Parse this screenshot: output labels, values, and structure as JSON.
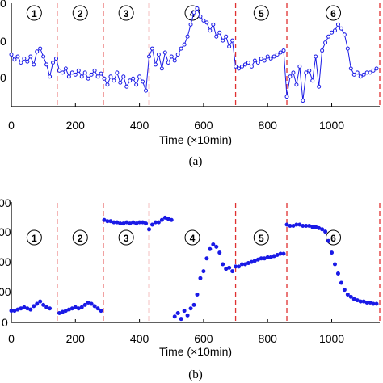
{
  "figure": {
    "caption_a": "(a)",
    "caption_b": "(b)"
  },
  "chart_data": [
    {
      "type": "line",
      "panel": "a",
      "xlabel": "Time (×10min)",
      "ylabel": "",
      "xlim": [
        0,
        1150
      ],
      "ylim": [
        0,
        1.0
      ],
      "xticks": [
        "0",
        "200",
        "400",
        "600",
        "800",
        "1000"
      ],
      "yticks_visible": [
        "0",
        "0",
        "0"
      ],
      "grid": false,
      "marker": "circle",
      "color": "#1a1ae6",
      "boundary_color": "#e03030",
      "boundaries": [
        143,
        287,
        430,
        700,
        860,
        1150
      ],
      "segments": [
        "①",
        "②",
        "③",
        "④",
        "⑤",
        "⑥"
      ],
      "series": [
        {
          "x": [
            0,
            10,
            20,
            30,
            40,
            50,
            60,
            70,
            80,
            90,
            100,
            110,
            120,
            130,
            140,
            150,
            160,
            170,
            180,
            190,
            200,
            210,
            220,
            230,
            240,
            250,
            260,
            270,
            280,
            290,
            300,
            310,
            320,
            330,
            340,
            350,
            360,
            370,
            380,
            390,
            400,
            410,
            420,
            430,
            440,
            450,
            460,
            470,
            480,
            490,
            500,
            510,
            520,
            530,
            540,
            550,
            560,
            570,
            580,
            590,
            600,
            610,
            620,
            630,
            640,
            650,
            660,
            670,
            680,
            690,
            700,
            710,
            720,
            730,
            740,
            750,
            760,
            770,
            780,
            790,
            800,
            810,
            820,
            830,
            840,
            850,
            860,
            870,
            880,
            890,
            900,
            910,
            920,
            930,
            940,
            950,
            960,
            970,
            980,
            990,
            1000,
            1010,
            1020,
            1030,
            1040,
            1050,
            1060,
            1070,
            1080,
            1090,
            1100,
            1110,
            1120,
            1130,
            1140
          ],
          "y": [
            0.52,
            0.47,
            0.5,
            0.44,
            0.48,
            0.45,
            0.5,
            0.42,
            0.55,
            0.58,
            0.5,
            0.42,
            0.3,
            0.44,
            0.48,
            0.36,
            0.34,
            0.38,
            0.3,
            0.34,
            0.32,
            0.36,
            0.3,
            0.34,
            0.28,
            0.32,
            0.36,
            0.3,
            0.33,
            0.28,
            0.22,
            0.3,
            0.26,
            0.34,
            0.24,
            0.3,
            0.2,
            0.26,
            0.28,
            0.22,
            0.3,
            0.25,
            0.16,
            0.5,
            0.58,
            0.42,
            0.52,
            0.38,
            0.54,
            0.44,
            0.5,
            0.46,
            0.52,
            0.58,
            0.62,
            0.7,
            0.82,
            0.94,
            0.98,
            0.9,
            0.86,
            0.84,
            0.76,
            0.82,
            0.7,
            0.74,
            0.66,
            0.7,
            0.6,
            0.66,
            0.4,
            0.38,
            0.4,
            0.42,
            0.44,
            0.4,
            0.46,
            0.44,
            0.48,
            0.46,
            0.5,
            0.48,
            0.5,
            0.52,
            0.54,
            0.56,
            0.1,
            0.3,
            0.34,
            0.22,
            0.4,
            0.06,
            0.34,
            0.36,
            0.26,
            0.5,
            0.2,
            0.56,
            0.64,
            0.7,
            0.74,
            0.76,
            0.82,
            0.78,
            0.72,
            0.58,
            0.38,
            0.32,
            0.34,
            0.3,
            0.32,
            0.34,
            0.34,
            0.36,
            0.38
          ]
        }
      ]
    },
    {
      "type": "scatter",
      "panel": "b",
      "xlabel": "Time (×10min)",
      "ylabel": "",
      "xlim": [
        0,
        1150
      ],
      "ylim": [
        0,
        1.0
      ],
      "xticks": [
        "0",
        "200",
        "400",
        "600",
        "800",
        "1000"
      ],
      "yticks_visible": [
        "00",
        "00",
        "00",
        "00",
        "0"
      ],
      "grid": false,
      "marker": "circle",
      "color": "#1a1ae6",
      "boundary_color": "#e03030",
      "boundaries": [
        143,
        287,
        430,
        700,
        860,
        1150
      ],
      "segments": [
        "①",
        "②",
        "③",
        "④",
        "⑤",
        "⑥"
      ],
      "series": [
        {
          "x": [
            0,
            10,
            20,
            30,
            40,
            50,
            60,
            70,
            80,
            90,
            100,
            110,
            120,
            150,
            160,
            170,
            180,
            190,
            200,
            210,
            220,
            230,
            240,
            250,
            260,
            270,
            280,
            290,
            300,
            310,
            320,
            330,
            340,
            350,
            360,
            370,
            380,
            390,
            400,
            410,
            420,
            430,
            440,
            450,
            460,
            470,
            480,
            490,
            500,
            510,
            520,
            530,
            540,
            550,
            560,
            570,
            580,
            590,
            600,
            610,
            620,
            630,
            640,
            650,
            660,
            670,
            680,
            690,
            700,
            710,
            720,
            730,
            740,
            750,
            760,
            770,
            780,
            790,
            800,
            810,
            820,
            830,
            840,
            850,
            860,
            870,
            880,
            890,
            900,
            910,
            920,
            930,
            940,
            950,
            960,
            970,
            980,
            990,
            1000,
            1010,
            1020,
            1030,
            1040,
            1050,
            1060,
            1070,
            1080,
            1090,
            1100,
            1110,
            1120,
            1130,
            1140
          ],
          "y": [
            0.1,
            0.1,
            0.11,
            0.12,
            0.13,
            0.12,
            0.11,
            0.14,
            0.16,
            0.18,
            0.15,
            0.13,
            0.12,
            0.08,
            0.09,
            0.1,
            0.11,
            0.12,
            0.13,
            0.12,
            0.13,
            0.15,
            0.17,
            0.16,
            0.14,
            0.12,
            0.1,
            0.88,
            0.87,
            0.87,
            0.86,
            0.86,
            0.85,
            0.85,
            0.86,
            0.85,
            0.86,
            0.85,
            0.86,
            0.86,
            0.85,
            0.8,
            0.84,
            0.86,
            0.86,
            0.88,
            0.9,
            0.89,
            0.88,
            0.05,
            0.08,
            0.03,
            0.1,
            0.06,
            0.12,
            0.15,
            0.24,
            0.38,
            0.44,
            0.55,
            0.63,
            0.67,
            0.65,
            0.6,
            0.5,
            0.46,
            0.47,
            0.44,
            0.48,
            0.48,
            0.5,
            0.5,
            0.51,
            0.52,
            0.53,
            0.54,
            0.55,
            0.55,
            0.56,
            0.56,
            0.57,
            0.58,
            0.59,
            0.59,
            0.84,
            0.83,
            0.83,
            0.84,
            0.84,
            0.83,
            0.83,
            0.83,
            0.82,
            0.82,
            0.81,
            0.8,
            0.78,
            0.7,
            0.6,
            0.5,
            0.42,
            0.34,
            0.28,
            0.24,
            0.22,
            0.2,
            0.19,
            0.18,
            0.18,
            0.17,
            0.17,
            0.16,
            0.16
          ]
        }
      ]
    }
  ]
}
